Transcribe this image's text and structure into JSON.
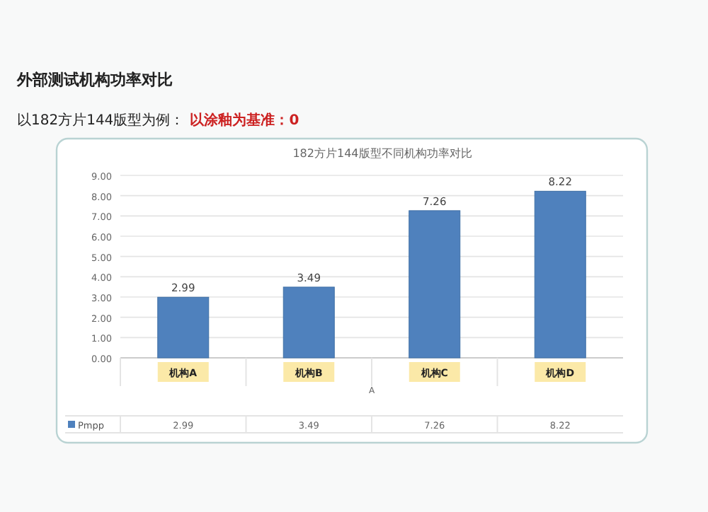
{
  "chart_data": {
    "type": "bar",
    "title": "182方片144版型不同机构功率对比",
    "subtitle": "以182方片144版型为例：",
    "annotations": [
      "外部测试机构功率对比",
      "以涂釉为基准：0"
    ],
    "xlabel": "A",
    "categories": [
      "机构A",
      "机构B",
      "机构C",
      "机构D"
    ],
    "series": [
      {
        "name": "Pmpp",
        "color": "#4f81bd",
        "values": [
          2.99,
          3.49,
          7.26,
          8.22
        ],
        "value_labels": [
          "2.99",
          "3.49",
          "7.26",
          "8.22"
        ]
      }
    ],
    "ylim": [
      0,
      9
    ],
    "yticks": [
      {
        "value": 0,
        "label": "0.00"
      },
      {
        "value": 1,
        "label": "1.00"
      },
      {
        "value": 2,
        "label": "2.00"
      },
      {
        "value": 3,
        "label": "3.00"
      },
      {
        "value": 4,
        "label": "4.00"
      },
      {
        "value": 5,
        "label": "5.00"
      },
      {
        "value": 6,
        "label": "6.00"
      },
      {
        "value": 7,
        "label": "7.00"
      },
      {
        "value": 8,
        "label": "8.00"
      },
      {
        "value": 9,
        "label": "9.00"
      }
    ],
    "grid": "y",
    "legend": "bottom"
  }
}
